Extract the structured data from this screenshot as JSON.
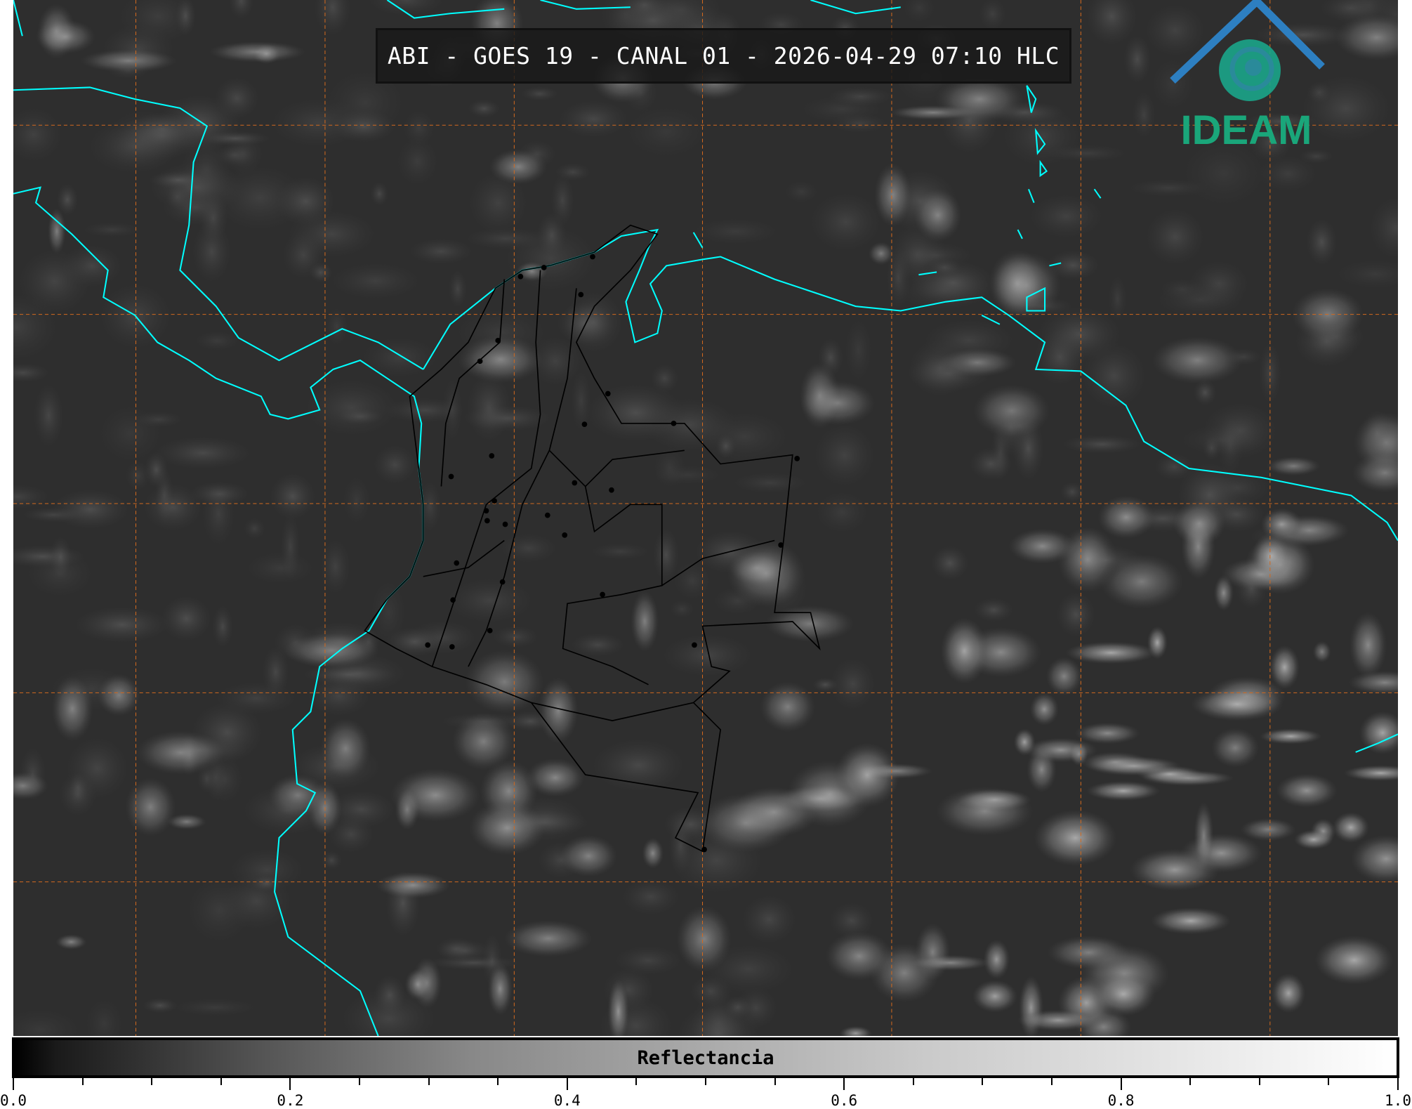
{
  "title": "ABI - GOES 19 - CANAL 01 - 2026-04-29 07:10 HLC",
  "colorbar": {
    "label": "Reflectancia",
    "colormap": "grayscale",
    "range": [
      0.0,
      1.0
    ],
    "tick_labels": [
      "0.0",
      "0.2",
      "0.4",
      "0.6",
      "0.8",
      "1.0"
    ],
    "major_ticks": [
      0.0,
      0.2,
      0.4,
      0.6,
      0.8,
      1.0
    ],
    "minor_step": 0.05
  },
  "map": {
    "coastline_color": "#00ffff",
    "borders_color": "#000000",
    "gridline_color": "#d2691e",
    "gridline_style": "dashed"
  },
  "logo": {
    "text": "IDEAM",
    "text_color": "#1aa67a",
    "roof_color": "#2d7fc1"
  }
}
